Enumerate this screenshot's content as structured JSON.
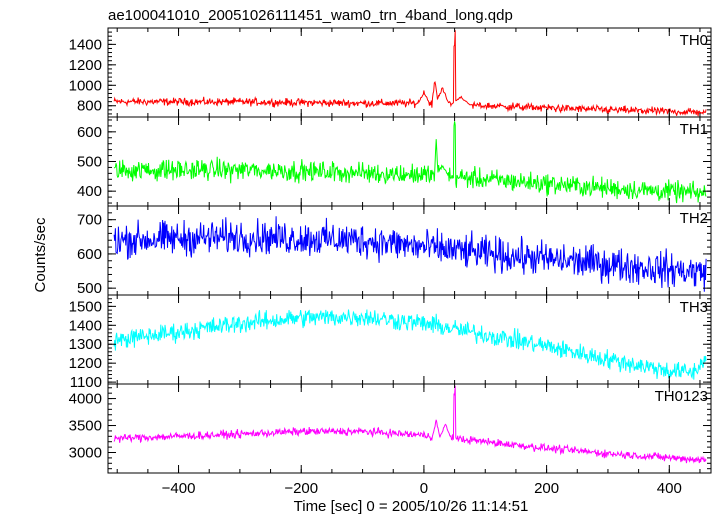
{
  "page": {
    "title": "ae100041010_20051026111451_wam0_trn_4band_long.qdp"
  },
  "chart_data": {
    "type": "line",
    "title": "ae100041010_20051026111451_wam0_trn_4band_long.qdp",
    "xlabel": "Time [sec] 0 = 2005/10/26 11:14:51",
    "ylabel": "Counts/sec",
    "xlim": [
      -515,
      468
    ],
    "x_range": [
      -505,
      460
    ],
    "xticks": [
      -400,
      -200,
      0,
      200,
      400
    ],
    "xtick_labels": [
      "−400",
      "−200",
      "0",
      "200",
      "400"
    ],
    "grid": false,
    "legend": "none",
    "panels": [
      {
        "name": "TH0",
        "color": "#ff0000",
        "ylim": [
          690,
          1560
        ],
        "yticks": [
          800,
          1000,
          1200,
          1400
        ],
        "ytick_labels": [
          "800",
          "1000",
          "1200",
          "1400"
        ],
        "baseline": [
          [
            -505,
            840
          ],
          [
            -300,
            838
          ],
          [
            -100,
            825
          ],
          [
            0,
            825
          ],
          [
            100,
            800
          ],
          [
            200,
            780
          ],
          [
            300,
            760
          ],
          [
            460,
            735
          ]
        ],
        "noise": 28,
        "features": [
          {
            "x": 0,
            "value": 950,
            "width": 8
          },
          {
            "x": 18,
            "value": 1090,
            "width": 4
          },
          {
            "x": 30,
            "value": 1000,
            "width": 10
          },
          {
            "x": 50,
            "value": 1560,
            "width": 1
          },
          {
            "x": 60,
            "value": 900,
            "width": 14
          }
        ]
      },
      {
        "name": "TH1",
        "color": "#00ff00",
        "ylim": [
          350,
          650
        ],
        "yticks": [
          400,
          500,
          600
        ],
        "ytick_labels": [
          "400",
          "500",
          "600"
        ],
        "baseline": [
          [
            -505,
            470
          ],
          [
            -300,
            472
          ],
          [
            -100,
            462
          ],
          [
            0,
            455
          ],
          [
            100,
            440
          ],
          [
            200,
            425
          ],
          [
            300,
            410
          ],
          [
            460,
            392
          ]
        ],
        "noise": 26,
        "features": [
          {
            "x": 20,
            "value": 595,
            "width": 2
          },
          {
            "x": 50,
            "value": 650,
            "width": 1
          },
          {
            "x": 30,
            "value": 490,
            "width": 10
          }
        ]
      },
      {
        "name": "TH2",
        "color": "#0000ff",
        "ylim": [
          480,
          740
        ],
        "yticks": [
          500,
          600,
          700
        ],
        "ytick_labels": [
          "500",
          "600",
          "700"
        ],
        "baseline": [
          [
            -505,
            640
          ],
          [
            -300,
            650
          ],
          [
            -100,
            640
          ],
          [
            0,
            620
          ],
          [
            100,
            600
          ],
          [
            200,
            585
          ],
          [
            300,
            570
          ],
          [
            460,
            545
          ]
        ],
        "noise": 38,
        "features": []
      },
      {
        "name": "TH3",
        "color": "#00ffff",
        "ylim": [
          1090,
          1560
        ],
        "yticks": [
          1100,
          1200,
          1300,
          1400,
          1500
        ],
        "ytick_labels": [
          "1100",
          "1200",
          "1300",
          "1400",
          "1500"
        ],
        "baseline": [
          [
            -505,
            1320
          ],
          [
            -400,
            1365
          ],
          [
            -300,
            1410
          ],
          [
            -200,
            1440
          ],
          [
            -100,
            1445
          ],
          [
            0,
            1410
          ],
          [
            100,
            1350
          ],
          [
            200,
            1290
          ],
          [
            300,
            1220
          ],
          [
            400,
            1160
          ],
          [
            440,
            1150
          ],
          [
            460,
            1230
          ]
        ],
        "noise": 38,
        "features": []
      },
      {
        "name": "TH0123",
        "color": "#ff00ff",
        "ylim": [
          2620,
          4270
        ],
        "yticks": [
          3000,
          3500,
          4000
        ],
        "ytick_labels": [
          "3000",
          "3500",
          "4000"
        ],
        "baseline": [
          [
            -505,
            3260
          ],
          [
            -300,
            3340
          ],
          [
            -200,
            3390
          ],
          [
            -100,
            3390
          ],
          [
            0,
            3320
          ],
          [
            100,
            3200
          ],
          [
            200,
            3080
          ],
          [
            300,
            2980
          ],
          [
            460,
            2860
          ]
        ],
        "noise": 55,
        "features": [
          {
            "x": 20,
            "value": 3620,
            "width": 5
          },
          {
            "x": 50,
            "value": 4270,
            "width": 1
          },
          {
            "x": 35,
            "value": 3550,
            "width": 8
          }
        ]
      }
    ]
  }
}
